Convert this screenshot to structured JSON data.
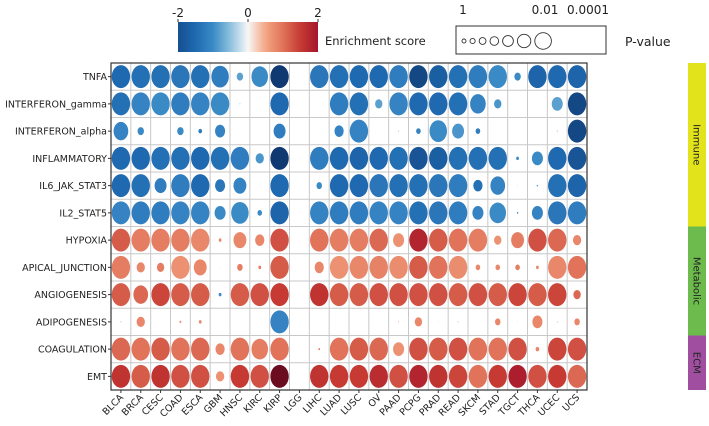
{
  "chart_data": {
    "type": "scatter",
    "subtype": "bubble-matrix",
    "columns": [
      "BLCA",
      "BRCA",
      "CESC",
      "COAD",
      "ESCA",
      "GBM",
      "HNSC",
      "KIRC",
      "KIRP",
      "LGG",
      "LIHC",
      "LUAD",
      "LUSC",
      "OV",
      "PAAD",
      "PCPG",
      "PRAD",
      "READ",
      "SKCM",
      "STAD",
      "TGCT",
      "THCA",
      "UCEC",
      "UCS"
    ],
    "rows": [
      {
        "name": "TNFA",
        "score": [
          -1.5,
          -1.4,
          -1.4,
          -1.3,
          -1.4,
          -1.2,
          -0.8,
          -1.0,
          -2.3,
          -0.3,
          -1.3,
          -1.4,
          -1.5,
          -1.5,
          -1.2,
          -2.1,
          -1.7,
          -1.4,
          -1.2,
          -1.0,
          -1.0,
          -1.6,
          -1.5,
          -1.6
        ],
        "sig": [
          1,
          1,
          1,
          1,
          1,
          0.95,
          0.35,
          0.9,
          1,
          0.02,
          1,
          1,
          1,
          1,
          1,
          1,
          1,
          1,
          1,
          1,
          0.35,
          1,
          1,
          1
        ]
      },
      {
        "name": "INTERFERON_gamma",
        "score": [
          -1.4,
          -1.1,
          -1.0,
          -1.2,
          -1.1,
          -1.0,
          -0.5,
          0,
          -1.5,
          0,
          0,
          -1.2,
          -1.4,
          -0.8,
          -1.1,
          -1.5,
          -1.5,
          -1.4,
          -1.1,
          -0.9,
          0,
          0,
          -0.8,
          -2.1
        ],
        "sig": [
          1,
          1,
          1,
          1,
          1,
          1,
          0.05,
          0,
          1,
          0,
          0,
          1,
          1,
          0.4,
          1,
          1,
          1,
          1,
          0.85,
          0.4,
          0,
          0,
          0.6,
          1
        ]
      },
      {
        "name": "INTERFERON_alpha",
        "score": [
          -1.1,
          -1.0,
          0,
          -1.0,
          -1.2,
          -1.1,
          0,
          0,
          -1.2,
          0,
          0,
          -1.1,
          -1.1,
          0,
          -0.5,
          -1.1,
          -1.0,
          -0.9,
          -1.2,
          0,
          0,
          0,
          -0.7,
          -2.1
        ],
        "sig": [
          0.8,
          0.35,
          0,
          0.35,
          0.2,
          0.55,
          0,
          0,
          0.65,
          0,
          0,
          0.5,
          1,
          0,
          0.05,
          0.25,
          0.95,
          0.65,
          0.25,
          0,
          0,
          0,
          0.05,
          1
        ]
      },
      {
        "name": "INFLAMMATORY",
        "score": [
          -1.5,
          -1.5,
          -1.4,
          -1.4,
          -1.5,
          -1.4,
          -1.2,
          -0.9,
          -2.3,
          -0.3,
          -1.2,
          -1.5,
          -1.6,
          -1.5,
          -1.4,
          -1.9,
          -1.7,
          -1.4,
          -1.4,
          -1.4,
          -1.0,
          -1.0,
          -1.5,
          -1.9
        ],
        "sig": [
          1,
          1,
          1,
          1,
          1,
          1,
          1,
          0.45,
          1,
          0.03,
          1,
          1,
          1,
          1,
          1,
          1,
          1,
          1,
          1,
          1,
          0.15,
          0.6,
          1,
          1
        ]
      },
      {
        "name": "IL6_JAK_STAT3",
        "score": [
          -1.5,
          -1.4,
          -1.2,
          -1.2,
          -1.5,
          -1.3,
          -1.1,
          -0.5,
          -1.5,
          0,
          -1.0,
          -1.5,
          -1.5,
          -1.3,
          -1.4,
          -1.4,
          -1.3,
          -1.2,
          -1.4,
          -1.1,
          -0.5,
          -0.8,
          -1.4,
          -1.6
        ],
        "sig": [
          1,
          1,
          0.65,
          1,
          1,
          0.55,
          0.7,
          0.03,
          1,
          0,
          0.3,
          1,
          1,
          1,
          1,
          1,
          1,
          1,
          0.5,
          0.8,
          0.03,
          0.08,
          1,
          1
        ]
      },
      {
        "name": "IL2_STAT5",
        "score": [
          -1.1,
          -1.2,
          -1.2,
          -1.1,
          -1.1,
          -1.0,
          -1.0,
          -1.0,
          -1.6,
          -0.3,
          -1.1,
          -1.2,
          -1.2,
          -1.1,
          -1.1,
          -1.4,
          -1.3,
          -1.2,
          -1.1,
          -1.0,
          -1.0,
          -1.1,
          -1.3,
          -1.2
        ],
        "sig": [
          1,
          1,
          1,
          1,
          1,
          0.6,
          0.95,
          0.25,
          1,
          0.03,
          1,
          1,
          1,
          1,
          1,
          1,
          1,
          1,
          0.6,
          0.9,
          0.08,
          0.6,
          1,
          1
        ]
      },
      {
        "name": "HYPOXIA",
        "score": [
          1.2,
          0.9,
          0.9,
          0.9,
          0.8,
          0.8,
          0.8,
          0.8,
          1.3,
          0.3,
          1.0,
          0.9,
          0.9,
          1.1,
          0.7,
          1.8,
          1.2,
          1.0,
          0.9,
          0.7,
          0.9,
          1.3,
          1.1,
          0.8
        ],
        "sig": [
          1,
          1,
          1,
          1,
          1,
          0.15,
          0.7,
          0.5,
          1,
          0.03,
          1,
          1,
          1,
          1,
          0.6,
          1,
          1,
          1,
          1,
          0.4,
          0.7,
          1,
          1,
          0.45
        ]
      },
      {
        "name": "APICAL_JUNCTION",
        "score": [
          0.9,
          0.8,
          0.9,
          0.7,
          0.8,
          0.3,
          0.9,
          0.9,
          1.2,
          0,
          0.8,
          0.7,
          0.8,
          0.85,
          0.75,
          1.2,
          1.0,
          0.75,
          0.8,
          0.8,
          0.9,
          0.8,
          0.8,
          1.0
        ],
        "sig": [
          1,
          0.45,
          0.4,
          1,
          0.7,
          0.03,
          0.3,
          0.15,
          1,
          0,
          0.5,
          1,
          1,
          1,
          1,
          1,
          1,
          1,
          0.25,
          0.25,
          0.25,
          0.15,
          1,
          1
        ]
      },
      {
        "name": "ANGIOGENESIS",
        "score": [
          1.2,
          1.1,
          1.4,
          1.2,
          1.2,
          -1.0,
          1.2,
          1.3,
          1.5,
          0,
          1.6,
          1.2,
          1.2,
          1.3,
          1.3,
          1.3,
          1.3,
          1.2,
          1.3,
          1.2,
          1.4,
          1.2,
          1.4,
          1.1
        ],
        "sig": [
          1,
          0.8,
          1,
          1,
          1,
          0.15,
          1,
          1,
          1,
          0,
          1,
          1,
          1,
          1,
          1,
          1,
          1,
          1,
          1,
          1,
          1,
          1,
          1,
          0.4
        ]
      },
      {
        "name": "ADIPOGENESIS",
        "score": [
          0.6,
          0.8,
          0,
          0.8,
          0.8,
          0,
          0,
          0,
          -1.1,
          0.3,
          0,
          0,
          0.3,
          0,
          0.6,
          0.8,
          0.4,
          0.6,
          0,
          0.8,
          0.4,
          0.8,
          0.6,
          0.8
        ],
        "sig": [
          0.05,
          0.45,
          0,
          0.1,
          0.15,
          0,
          0,
          0,
          1,
          0.03,
          0,
          0,
          0.02,
          0,
          0.05,
          0.4,
          0.03,
          0.05,
          0,
          0.3,
          0.03,
          0.55,
          0.05,
          0.3
        ]
      },
      {
        "name": "COAGULATION",
        "score": [
          1.1,
          1.0,
          1.2,
          1.0,
          1.1,
          0.8,
          1.0,
          0.9,
          1.0,
          0,
          0.8,
          1.0,
          1.2,
          1.1,
          0.7,
          1.3,
          1.2,
          1.3,
          1.0,
          1.0,
          1.3,
          0.8,
          1.4,
          1.3
        ],
        "sig": [
          1,
          1,
          1,
          1,
          1,
          0.5,
          1,
          0.9,
          1,
          0,
          0.1,
          1,
          1,
          1,
          0.6,
          1,
          1,
          1,
          1,
          1,
          1,
          0.2,
          1,
          1
        ]
      },
      {
        "name": "EMT",
        "score": [
          1.6,
          1.2,
          1.6,
          1.3,
          1.3,
          0.7,
          1.5,
          1.3,
          2.4,
          0,
          1.6,
          1.5,
          1.5,
          1.7,
          1.3,
          1.8,
          1.6,
          1.4,
          1.0,
          1.5,
          1.9,
          1.3,
          1.5,
          1.1
        ],
        "sig": [
          1,
          1,
          1,
          1,
          1,
          0.45,
          1,
          1,
          1,
          0,
          1,
          1,
          1,
          1,
          1,
          1,
          1,
          1,
          1,
          1,
          1,
          1,
          1,
          1
        ]
      }
    ],
    "groups": [
      {
        "name": "Immune",
        "rows": [
          "TNFA",
          "INTERFERON_gamma",
          "INTERFERON_alpha",
          "INFLAMMATORY",
          "IL6_JAK_STAT3",
          "IL2_STAT5"
        ],
        "color": "#e3e31c"
      },
      {
        "name": "Metabolic",
        "rows": [
          "HYPOXIA",
          "APICAL_JUNCTION",
          "ANGIOGENESIS",
          "ADIPOGENESIS"
        ],
        "color": "#6cbb4c"
      },
      {
        "name": "ECM",
        "rows": [
          "COAGULATION",
          "EMT"
        ],
        "color": "#a04fa0"
      }
    ],
    "color_legend": {
      "title": "Enrichment score",
      "ticks": [
        "-2",
        "0",
        "2"
      ],
      "range": [
        -2,
        2
      ],
      "colormap": "RdBu_r"
    },
    "size_legend": {
      "title": "P-value",
      "ticks": [
        "1",
        "0.01",
        "0.0001"
      ],
      "circles": 7
    },
    "grid": true
  }
}
